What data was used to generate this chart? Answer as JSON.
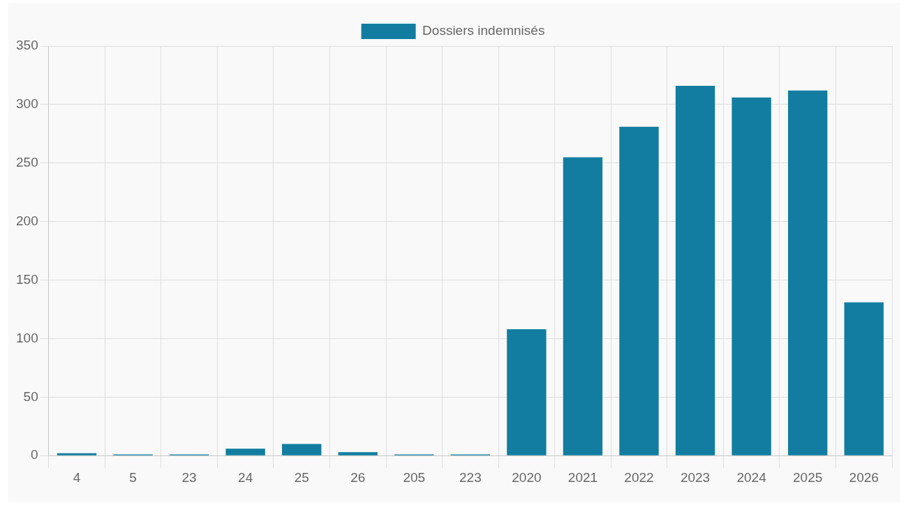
{
  "chart_data": {
    "type": "bar",
    "categories": [
      "4",
      "5",
      "23",
      "24",
      "25",
      "26",
      "205",
      "223",
      "2020",
      "2021",
      "2022",
      "2023",
      "2024",
      "2025",
      "2026"
    ],
    "series": [
      {
        "name": "Dossiers indemnisés",
        "color": "#127da0",
        "values": [
          2,
          1,
          1,
          6,
          10,
          3,
          1,
          1,
          108,
          255,
          281,
          316,
          306,
          312,
          131
        ]
      }
    ],
    "ylim": [
      0,
      350
    ],
    "yticks": [
      0,
      50,
      100,
      150,
      200,
      250,
      300,
      350
    ],
    "grid": true,
    "legend": "top"
  }
}
